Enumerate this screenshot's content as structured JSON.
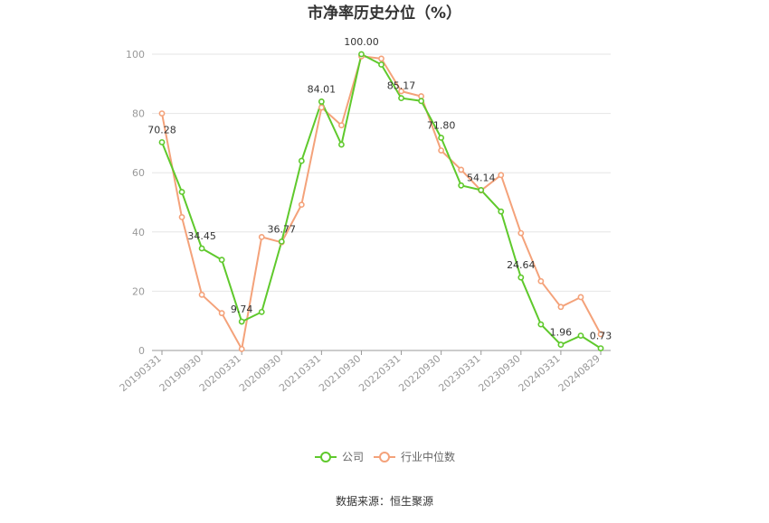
{
  "chart_data": {
    "type": "line",
    "title": "市净率历史分位（%）",
    "ylim": [
      0,
      100
    ],
    "yticks": [
      0,
      20,
      40,
      60,
      80,
      100
    ],
    "grid": true,
    "legend_position": "bottom",
    "x_tick_labels": [
      "20190331",
      "20190930",
      "20200331",
      "20200930",
      "20210331",
      "20210930",
      "20220331",
      "20220930",
      "20230331",
      "20230930",
      "20240331",
      "20240829"
    ],
    "x": [
      "20190331",
      "20190630",
      "20190930",
      "20191231",
      "20200331",
      "20200630",
      "20200930",
      "20201231",
      "20210331",
      "20210630",
      "20210930",
      "20211231",
      "20220331",
      "20220630",
      "20220930",
      "20221231",
      "20230331",
      "20230630",
      "20230930",
      "20231231",
      "20240331",
      "20240630",
      "20240829"
    ],
    "series": [
      {
        "name": "公司",
        "color": "#5fc92c",
        "values": [
          70.28,
          53.5,
          34.45,
          30.6,
          9.74,
          13.0,
          36.77,
          64.0,
          84.01,
          69.5,
          100.0,
          96.5,
          85.17,
          84.2,
          71.8,
          55.7,
          54.14,
          46.9,
          24.64,
          8.8,
          1.96,
          5.0,
          0.73
        ]
      },
      {
        "name": "行业中位数",
        "color": "#f4a27a",
        "values": [
          80.0,
          45.0,
          18.8,
          12.6,
          0.5,
          38.3,
          36.5,
          49.2,
          82.0,
          76.0,
          99.3,
          98.5,
          87.5,
          85.8,
          67.5,
          61.0,
          54.0,
          59.2,
          39.6,
          23.4,
          14.7,
          18.0,
          5.5
        ]
      }
    ],
    "data_labels": [
      {
        "index": 0,
        "text": "70.28"
      },
      {
        "index": 2,
        "text": "34.45"
      },
      {
        "index": 4,
        "text": "9.74"
      },
      {
        "index": 6,
        "text": "36.77"
      },
      {
        "index": 8,
        "text": "84.01"
      },
      {
        "index": 10,
        "text": "100.00"
      },
      {
        "index": 12,
        "text": "85.17"
      },
      {
        "index": 14,
        "text": "71.80"
      },
      {
        "index": 16,
        "text": "54.14"
      },
      {
        "index": 18,
        "text": "24.64"
      },
      {
        "index": 20,
        "text": "1.96"
      },
      {
        "index": 22,
        "text": "0.73"
      }
    ]
  },
  "legend": {
    "company": "公司",
    "industry": "行业中位数"
  },
  "source": "数据来源：恒生聚源"
}
